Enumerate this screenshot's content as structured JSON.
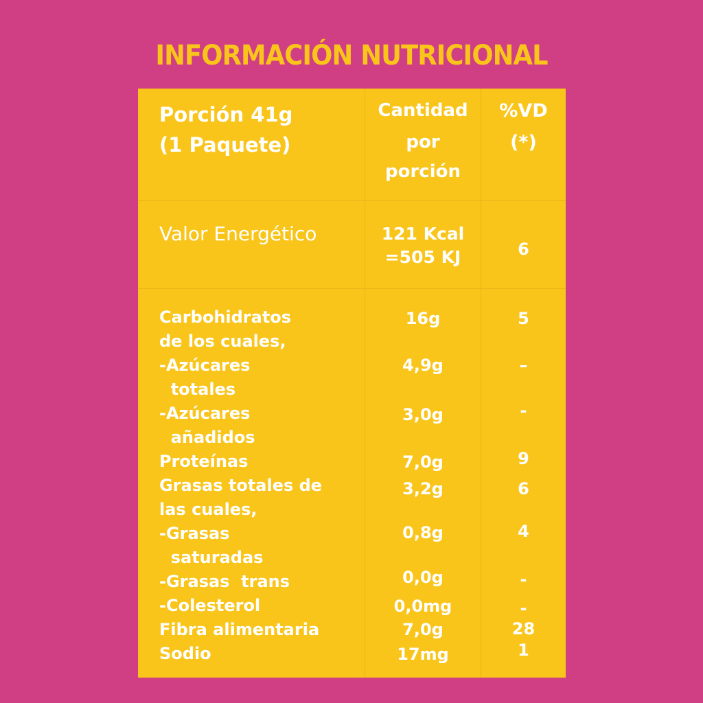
{
  "title": "INFORMACIÓN NUTRICIONAL",
  "colors": {
    "background": "#d03f84",
    "panel": "#f9c51b",
    "text": "#ffffff"
  },
  "header": {
    "portion_line1": "Porción 41g",
    "portion_line2": "(1 Paquete)",
    "amount_line1": "Cantidad",
    "amount_line2": "por",
    "amount_line3": "porción",
    "vd_line1": "%VD",
    "vd_line2": "(*)"
  },
  "energy": {
    "label": "Valor Energético",
    "amount_line1": "121 Kcal",
    "amount_line2": "=505 KJ",
    "vd": "6"
  },
  "rows": [
    {
      "label": "Carbohidratos",
      "amount": "16g",
      "vd": "5"
    },
    {
      "label": "de los cuales,",
      "amount": "",
      "vd": ""
    },
    {
      "label": "-Azúcares",
      "amount": "4,9g",
      "vd": "–"
    },
    {
      "label": "  totales",
      "amount": "",
      "vd": ""
    },
    {
      "label": "-Azúcares",
      "amount": "3,0g",
      "vd": "-"
    },
    {
      "label": "  añadidos",
      "amount": "",
      "vd": ""
    },
    {
      "label": "Proteínas",
      "amount": "7,0g",
      "vd": "9"
    },
    {
      "label": "Grasas totales de",
      "amount": "3,2g",
      "vd": "6"
    },
    {
      "label": "las cuales,",
      "amount": "",
      "vd": ""
    },
    {
      "label": "-Grasas",
      "amount": "0,8g",
      "vd": "4"
    },
    {
      "label": "  saturadas",
      "amount": "",
      "vd": ""
    },
    {
      "label": "-Grasas  trans",
      "amount": "0,0g",
      "vd": "-"
    },
    {
      "label": "-Colesterol",
      "amount": "0,0mg",
      "vd": "-"
    },
    {
      "label": "Fibra alimentaria",
      "amount": "7,0g",
      "vd": "28"
    },
    {
      "label": "Sodio",
      "amount": "17mg",
      "vd": "1"
    }
  ]
}
